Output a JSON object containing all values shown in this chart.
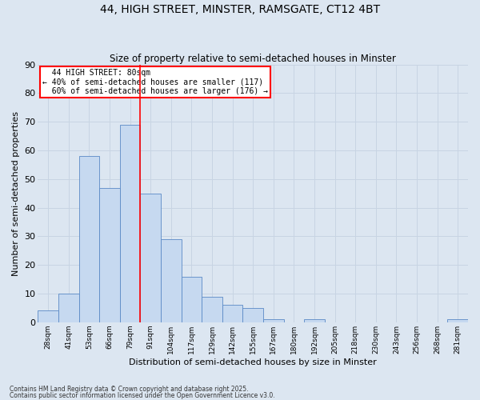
{
  "title_line1": "44, HIGH STREET, MINSTER, RAMSGATE, CT12 4BT",
  "title_line2": "Size of property relative to semi-detached houses in Minster",
  "xlabel": "Distribution of semi-detached houses by size in Minster",
  "ylabel": "Number of semi-detached properties",
  "categories": [
    "28sqm",
    "41sqm",
    "53sqm",
    "66sqm",
    "79sqm",
    "91sqm",
    "104sqm",
    "117sqm",
    "129sqm",
    "142sqm",
    "155sqm",
    "167sqm",
    "180sqm",
    "192sqm",
    "205sqm",
    "218sqm",
    "230sqm",
    "243sqm",
    "256sqm",
    "268sqm",
    "281sqm"
  ],
  "values": [
    4,
    10,
    58,
    47,
    69,
    45,
    29,
    16,
    9,
    6,
    5,
    1,
    0,
    1,
    0,
    0,
    0,
    0,
    0,
    0,
    1
  ],
  "bar_color": "#c6d9f0",
  "bar_edge_color": "#5a8ac6",
  "grid_color": "#c8d4e3",
  "background_color": "#dce6f1",
  "property_label": "44 HIGH STREET: 80sqm",
  "pct_smaller": 40,
  "count_smaller": 117,
  "pct_larger": 60,
  "count_larger": 176,
  "vline_x": 4.5,
  "ylim": [
    0,
    90
  ],
  "yticks": [
    0,
    10,
    20,
    30,
    40,
    50,
    60,
    70,
    80,
    90
  ],
  "footnote1": "Contains HM Land Registry data © Crown copyright and database right 2025.",
  "footnote2": "Contains public sector information licensed under the Open Government Licence v3.0."
}
